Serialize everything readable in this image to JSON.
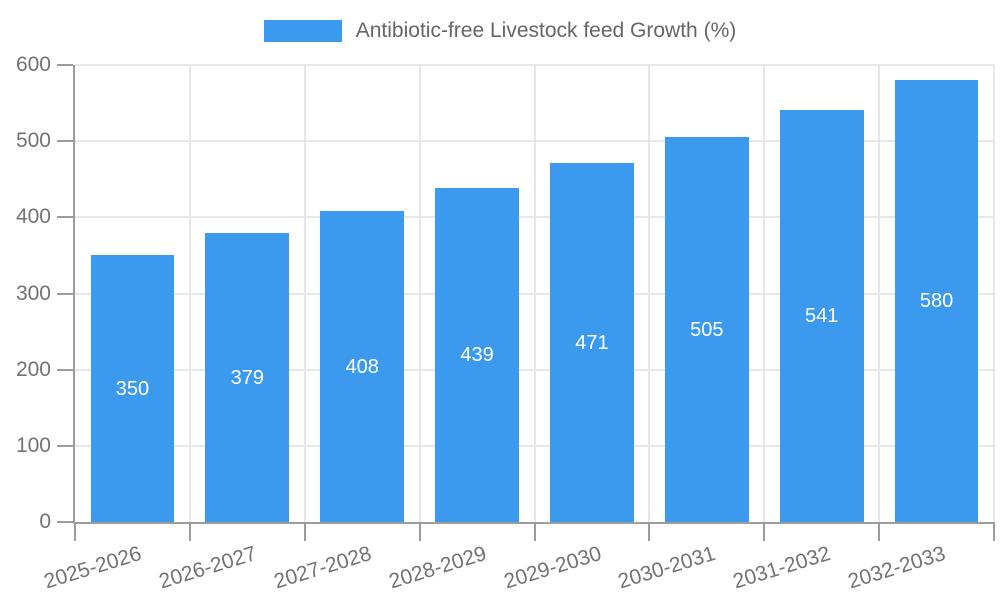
{
  "legend": {
    "label": "Antibiotic-free Livestock feed Growth (%)"
  },
  "chart_data": {
    "type": "bar",
    "title": "Antibiotic-free Livestock feed Growth (%)",
    "categories": [
      "2025-2026",
      "2026-2027",
      "2027-2028",
      "2028-2029",
      "2029-2030",
      "2030-2031",
      "2031-2032",
      "2032-2033"
    ],
    "series": [
      {
        "name": "Antibiotic-free Livestock feed Growth (%)",
        "values": [
          350,
          379,
          408,
          439,
          471,
          505,
          541,
          580
        ]
      }
    ],
    "values": [
      350,
      379,
      408,
      439,
      471,
      505,
      541,
      580
    ],
    "value_labels_shown": true,
    "ylim": [
      0,
      600
    ],
    "yticks": [
      0,
      100,
      200,
      300,
      400,
      500,
      600
    ],
    "grid": true,
    "legend_position": "top",
    "x_tick_rotation_deg": -17,
    "colors": {
      "bar": "#3b99ee",
      "grid": "#e7e7e7",
      "axis": "#9c9c9c",
      "tick_label": "#737373",
      "legend_text": "#666666",
      "value_label": "#ffffff",
      "background": "#ffffff"
    }
  }
}
